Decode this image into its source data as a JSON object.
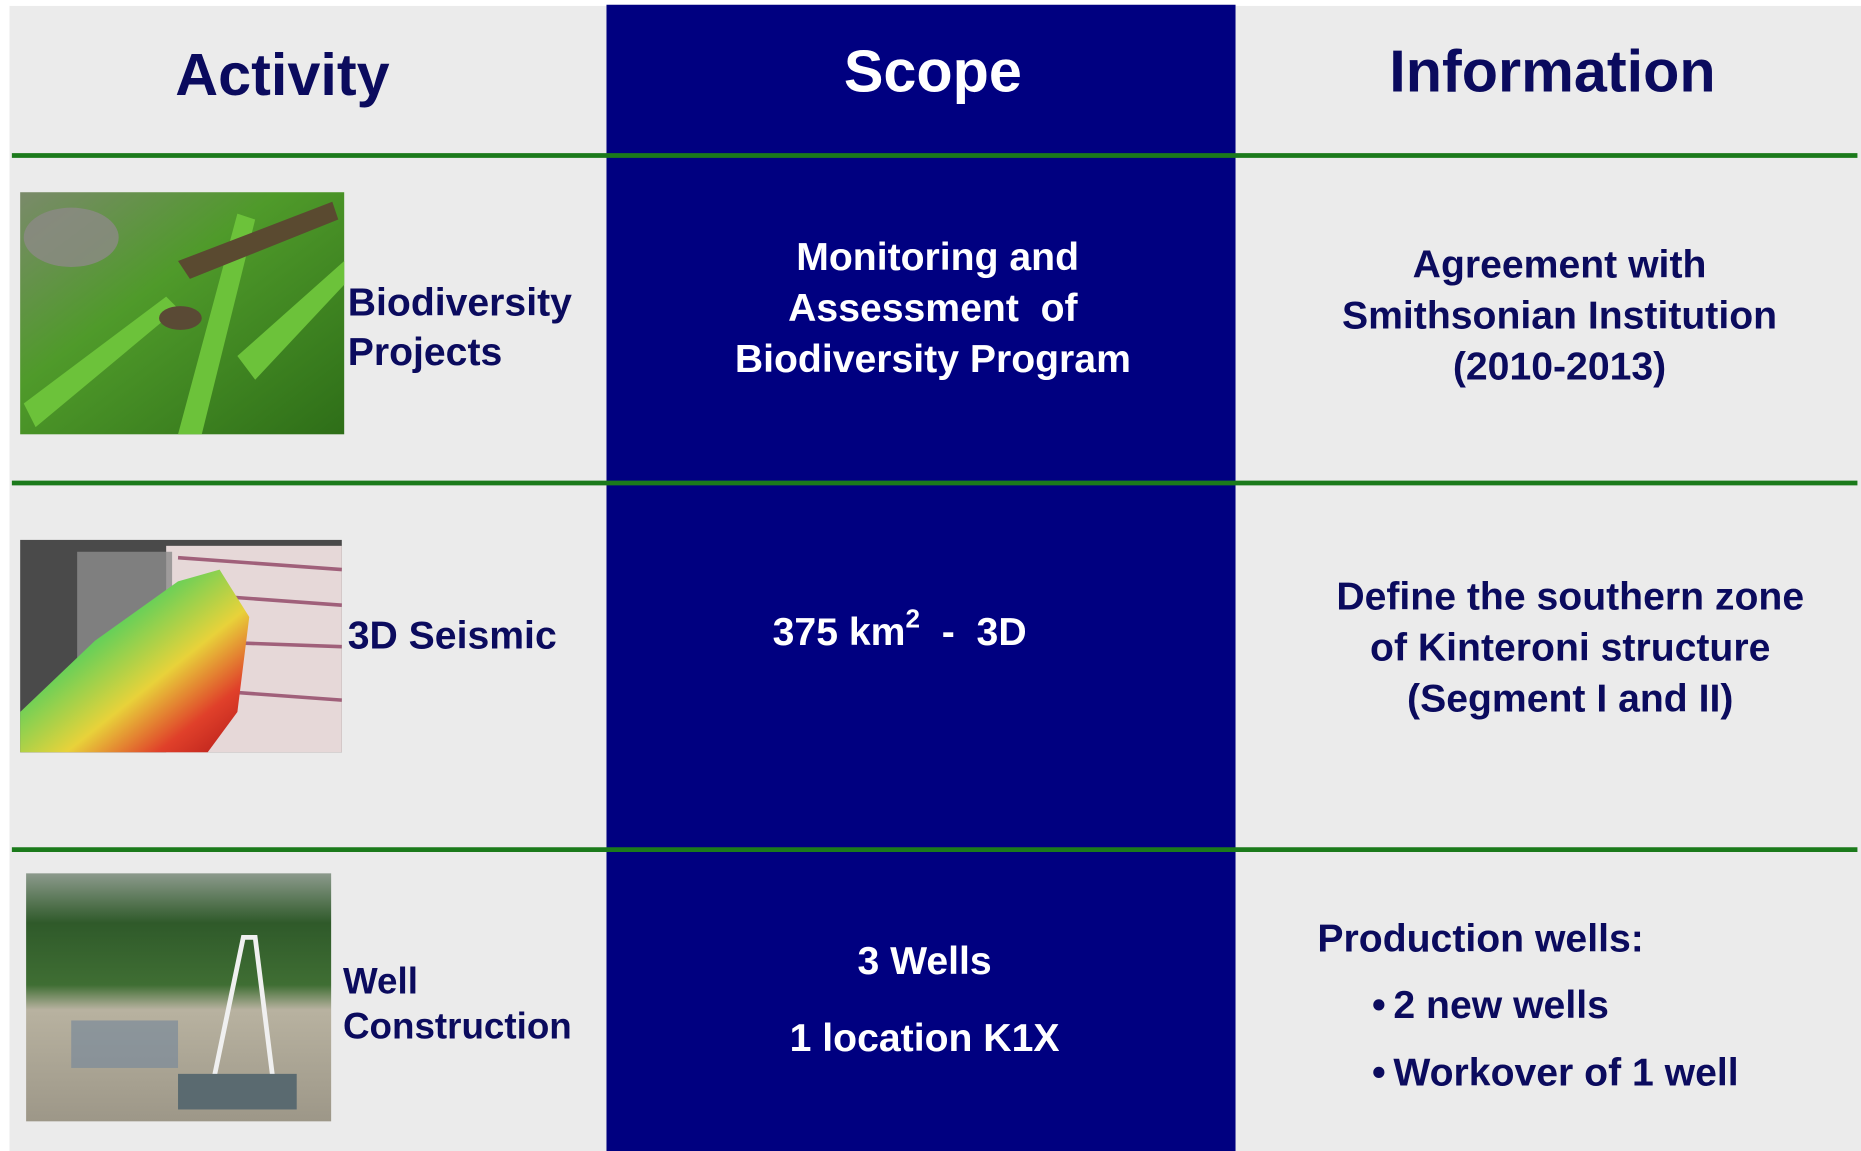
{
  "header": {
    "activity": "Activity",
    "scope": "Scope",
    "information": "Information"
  },
  "rows": [
    {
      "activity": [
        "Biodiversity",
        "Projects"
      ],
      "scope": [
        "Monitoring and",
        "Assessment  of",
        "Biodiversity Program"
      ],
      "information": [
        "Agreement with",
        "Smithsonian Institution",
        "(2010-2013)"
      ]
    },
    {
      "activity": [
        "3D Seismic"
      ],
      "scope": {
        "text": "375 km",
        "superscript": "2",
        "suffix": "  -  3D"
      },
      "information": [
        "Define the southern zone",
        "of Kinteroni structure",
        "(Segment I and II)"
      ]
    },
    {
      "activity": [
        "Well",
        "Construction"
      ],
      "scope": [
        "3 Wells",
        "1 location K1X"
      ],
      "information": {
        "heading": "Production wells:",
        "bullets": [
          "2 new wells",
          "Workover of 1 well"
        ]
      }
    }
  ]
}
